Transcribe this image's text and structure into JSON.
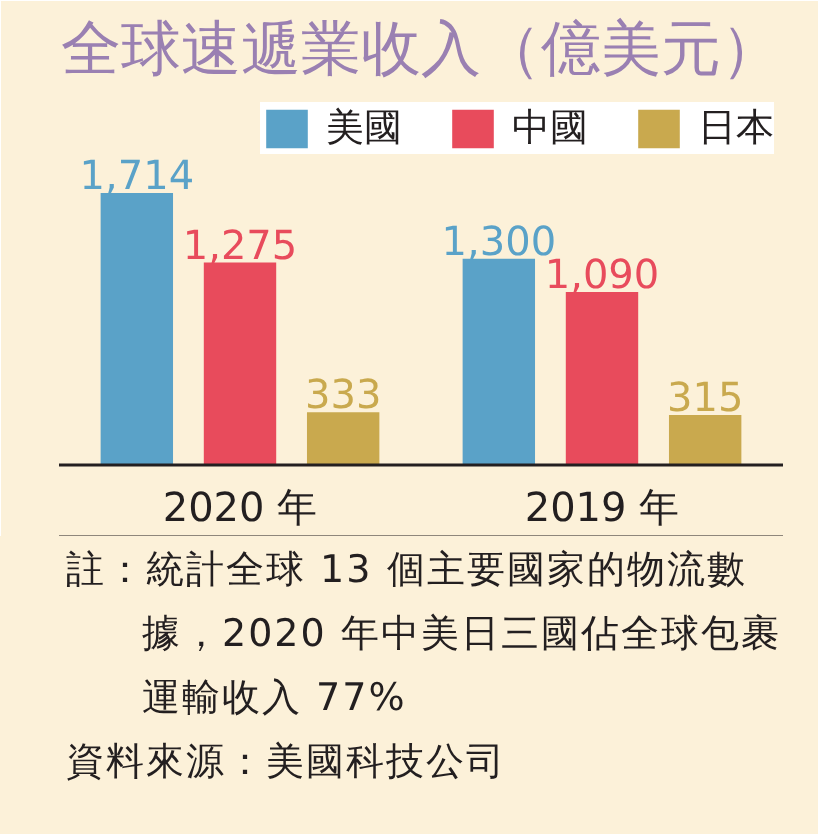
{
  "chart_data": {
    "type": "bar",
    "title": "全球速遞業收入（億美元）",
    "categories": [
      "2020 年",
      "2019 年"
    ],
    "series": [
      {
        "name": "美國",
        "color": "#5aa2c8",
        "values": [
          1714,
          1300
        ],
        "value_labels": [
          "1,714",
          "1,300"
        ]
      },
      {
        "name": "中國",
        "color": "#e84b5c",
        "values": [
          1275,
          1090
        ],
        "value_labels": [
          "1,275",
          "1,090"
        ]
      },
      {
        "name": "日本",
        "color": "#c9a94e",
        "values": [
          333,
          315
        ],
        "value_labels": [
          "333",
          "315"
        ]
      }
    ],
    "legend": "top right",
    "annotations": [
      "註：統計全球 13 個主要國家的物流數據，2020 年中美日三國佔全球包裹運輸收入 77%",
      "資料來源：美國科技公司"
    ]
  }
}
